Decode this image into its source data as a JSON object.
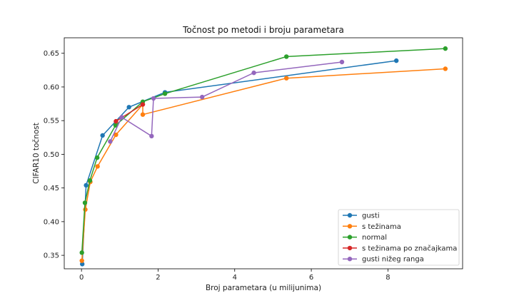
{
  "chart_data": {
    "type": "line",
    "title": "Točnost po metodi i broju parametara",
    "xlabel": "Broj parametara (u milijunima)",
    "ylabel": "CIFAR10 točnost",
    "xlim": [
      -0.45,
      9.95
    ],
    "ylim": [
      0.33,
      0.673
    ],
    "xticks": [
      0,
      2,
      4,
      6,
      8
    ],
    "yticks": [
      0.35,
      0.4,
      0.45,
      0.5,
      0.55,
      0.6,
      0.65
    ],
    "ytick_labels": [
      "0.35",
      "0.40",
      "0.45",
      "0.50",
      "0.55",
      "0.60",
      "0.65"
    ],
    "grid": false,
    "legend_position": "lower-right",
    "series": [
      {
        "name": "gusti",
        "color": "#1f77b4",
        "points": [
          [
            0.02,
            0.337
          ],
          [
            0.12,
            0.454
          ],
          [
            0.55,
            0.528
          ],
          [
            1.24,
            0.57
          ],
          [
            2.18,
            0.592
          ],
          [
            8.22,
            0.639
          ]
        ]
      },
      {
        "name": "s težinama",
        "color": "#ff7f0e",
        "points": [
          [
            0.01,
            0.342
          ],
          [
            0.1,
            0.418
          ],
          [
            0.23,
            0.459
          ],
          [
            0.42,
            0.482
          ],
          [
            0.9,
            0.529
          ],
          [
            1.6,
            0.574
          ],
          [
            1.6,
            0.559
          ],
          [
            5.35,
            0.613
          ],
          [
            9.5,
            0.627
          ]
        ]
      },
      {
        "name": "normal",
        "color": "#2ca02c",
        "points": [
          [
            0.01,
            0.354
          ],
          [
            0.09,
            0.428
          ],
          [
            0.22,
            0.461
          ],
          [
            0.41,
            0.495
          ],
          [
            0.89,
            0.543
          ],
          [
            1.6,
            0.578
          ],
          [
            2.18,
            0.59
          ],
          [
            5.35,
            0.645
          ],
          [
            9.5,
            0.657
          ]
        ]
      },
      {
        "name": "s težinama po značajkama",
        "color": "#d62728",
        "points": [
          [
            0.9,
            0.549
          ],
          [
            1.6,
            0.574
          ]
        ]
      },
      {
        "name": "gusti nižeg ranga",
        "color": "#9467bd",
        "points": [
          [
            0.75,
            0.519
          ],
          [
            1.05,
            0.555
          ],
          [
            1.83,
            0.527
          ],
          [
            1.88,
            0.583
          ],
          [
            3.15,
            0.585
          ],
          [
            4.5,
            0.621
          ],
          [
            6.8,
            0.637
          ]
        ]
      }
    ]
  }
}
